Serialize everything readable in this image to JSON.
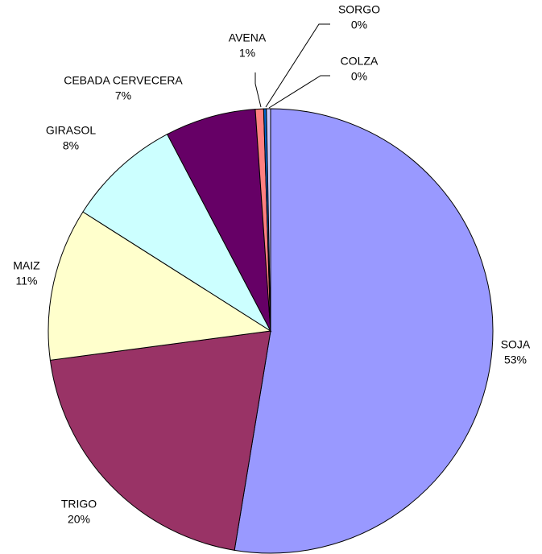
{
  "chart_data": {
    "type": "pie",
    "categories": [
      "SOJA",
      "TRIGO",
      "MAIZ",
      "GIRASOL",
      "CEBADA CERVECERA",
      "AVENA",
      "SORGO",
      "COLZA"
    ],
    "values": [
      52.6,
      20.3,
      11.1,
      8.3,
      6.6,
      0.6,
      0.2,
      0.3
    ],
    "value_labels": [
      "53%",
      "20%",
      "11%",
      "8%",
      "7%",
      "1%",
      "0%",
      "0%"
    ],
    "colors": [
      "#9999ff",
      "#993366",
      "#ffffcc",
      "#ccffff",
      "#660066",
      "#ff8080",
      "#0066cc",
      "#ccccff"
    ]
  }
}
